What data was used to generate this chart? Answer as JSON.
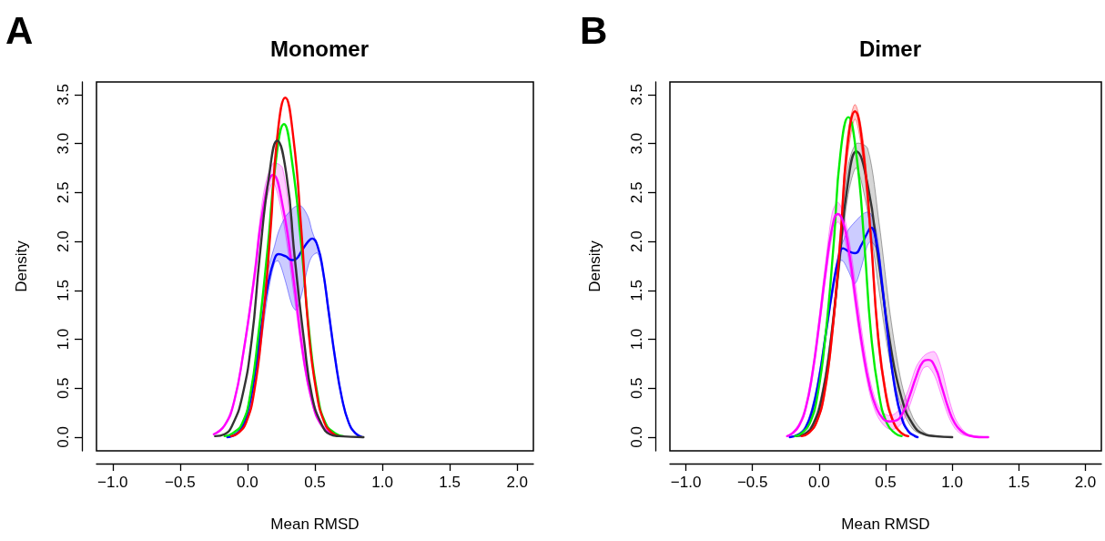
{
  "chart_data": [
    {
      "type": "line",
      "title": "Monomer",
      "xlabel": "Mean RMSD",
      "ylabel": "Density",
      "annotations": [
        "A"
      ],
      "xlim": [
        -1.12,
        2.12
      ],
      "ylim": [
        -0.14,
        3.63
      ],
      "xticks": [
        {
          "value": -1,
          "label": "−1.0"
        },
        {
          "value": -0.5,
          "label": "−0.5"
        },
        {
          "value": 0,
          "label": "0.0"
        },
        {
          "value": 0.5,
          "label": "0.5"
        },
        {
          "value": 1,
          "label": "1.0"
        },
        {
          "value": 1.5,
          "label": "1.5"
        },
        {
          "value": 2,
          "label": "2.0"
        }
      ],
      "yticks": [
        {
          "value": 0,
          "label": "0.0"
        },
        {
          "value": 0.5,
          "label": "0.5"
        },
        {
          "value": 1,
          "label": "1.0"
        },
        {
          "value": 1.5,
          "label": "1.5"
        },
        {
          "value": 2,
          "label": "2.0"
        },
        {
          "value": 2.5,
          "label": "2.5"
        },
        {
          "value": 3,
          "label": "3.0"
        },
        {
          "value": 3.5,
          "label": "3.5"
        }
      ],
      "series": [
        {
          "color": "#ff00ff",
          "x": [
            -0.25,
            -0.17,
            -0.1,
            -0.03,
            0.05,
            0.12,
            0.19,
            0.26,
            0.34,
            0.41,
            0.48,
            0.55,
            0.63
          ],
          "values": [
            0.03,
            0.12,
            0.36,
            0.87,
            1.63,
            2.37,
            2.68,
            2.37,
            1.63,
            0.87,
            0.36,
            0.12,
            0.03
          ],
          "lower": [
            0.02,
            0.11,
            0.34,
            0.83,
            1.57,
            2.3,
            2.6,
            2.25,
            1.5,
            0.8,
            0.33,
            0.1,
            0.02
          ],
          "upper": [
            0.03,
            0.13,
            0.38,
            0.9,
            1.7,
            2.5,
            2.8,
            2.75,
            1.9,
            1.0,
            0.42,
            0.14,
            0.04
          ]
        },
        {
          "color": "#0000ff",
          "x": [
            -0.15,
            -0.1,
            -0.05,
            0,
            0.05,
            0.1,
            0.15,
            0.2,
            0.23,
            0.28,
            0.33,
            0.36,
            0.4,
            0.45,
            0.48,
            0.52,
            0.56,
            0.6,
            0.65,
            0.7,
            0.75,
            0.8,
            0.85
          ],
          "values": [
            0,
            0.02,
            0.08,
            0.25,
            0.6,
            1.1,
            1.55,
            1.82,
            1.87,
            1.85,
            1.81,
            1.82,
            1.9,
            2.0,
            2.03,
            1.95,
            1.7,
            1.3,
            0.8,
            0.4,
            0.15,
            0.04,
            0
          ],
          "lower": [
            0,
            0.01,
            0.06,
            0.2,
            0.5,
            0.95,
            1.45,
            1.78,
            1.8,
            1.6,
            1.35,
            1.3,
            1.45,
            1.75,
            1.85,
            1.88,
            1.65,
            1.25,
            0.78,
            0.38,
            0.14,
            0.03,
            0
          ],
          "upper": [
            0,
            0.03,
            0.1,
            0.3,
            0.7,
            1.25,
            1.7,
            1.95,
            2.1,
            2.25,
            2.33,
            2.36,
            2.36,
            2.25,
            2.1,
            1.95,
            1.72,
            1.35,
            0.85,
            0.42,
            0.16,
            0.05,
            0
          ]
        },
        {
          "color": "#00ee00",
          "x": [
            -0.17,
            -0.11,
            -0.04,
            0.02,
            0.08,
            0.15,
            0.21,
            0.27,
            0.33,
            0.4,
            0.46,
            0.52,
            0.58,
            0.65,
            0.71
          ],
          "values": [
            0.01,
            0.04,
            0.14,
            0.43,
            1.04,
            1.94,
            2.82,
            3.2,
            2.82,
            1.94,
            1.04,
            0.43,
            0.14,
            0.04,
            0.01
          ]
        },
        {
          "color": "#ff0000",
          "x": [
            -0.12,
            -0.07,
            -0.01,
            0.05,
            0.11,
            0.17,
            0.22,
            0.28,
            0.34,
            0.4,
            0.45,
            0.51,
            0.57,
            0.63,
            0.68
          ],
          "values": [
            0.01,
            0.04,
            0.15,
            0.47,
            1.13,
            2.1,
            3.06,
            3.47,
            3.06,
            2.1,
            1.13,
            0.47,
            0.15,
            0.04,
            0.01
          ]
        },
        {
          "color": "#333333",
          "x": [
            -0.24,
            -0.17,
            -0.11,
            -0.04,
            0.03,
            0.09,
            0.16,
            0.22,
            0.29,
            0.35,
            0.42,
            0.48,
            0.55,
            0.61,
            0.68,
            0.86
          ],
          "values": [
            0.01,
            0.03,
            0.13,
            0.41,
            0.98,
            1.84,
            2.67,
            3.03,
            2.67,
            1.84,
            0.98,
            0.41,
            0.13,
            0.03,
            0.01,
            0
          ]
        }
      ]
    },
    {
      "type": "line",
      "title": "Dimer",
      "xlabel": "Mean RMSD",
      "ylabel": "Density",
      "annotations": [
        "B"
      ],
      "xlim": [
        -1.12,
        2.12
      ],
      "ylim": [
        -0.14,
        3.63
      ],
      "xticks": [
        {
          "value": -1,
          "label": "−1.0"
        },
        {
          "value": -0.5,
          "label": "−0.5"
        },
        {
          "value": 0,
          "label": "0.0"
        },
        {
          "value": 0.5,
          "label": "0.5"
        },
        {
          "value": 1,
          "label": "1.0"
        },
        {
          "value": 1.5,
          "label": "1.5"
        },
        {
          "value": 2,
          "label": "2.0"
        }
      ],
      "yticks": [
        {
          "value": 0,
          "label": "0.0"
        },
        {
          "value": 0.5,
          "label": "0.5"
        },
        {
          "value": 1,
          "label": "1.0"
        },
        {
          "value": 1.5,
          "label": "1.5"
        },
        {
          "value": 2,
          "label": "2.0"
        },
        {
          "value": 2.5,
          "label": "2.5"
        },
        {
          "value": 3,
          "label": "3.0"
        },
        {
          "value": 3.5,
          "label": "3.5"
        }
      ],
      "series": [
        {
          "color": "#333333",
          "x": [
            -0.18,
            -0.11,
            -0.045,
            0.02,
            0.085,
            0.15,
            0.215,
            0.28,
            0.365,
            0.45,
            0.535,
            0.62,
            0.705,
            0.79,
            0.875,
            1.0
          ],
          "values": [
            0.01,
            0.03,
            0.13,
            0.4,
            0.95,
            1.77,
            2.58,
            2.92,
            2.58,
            1.77,
            0.95,
            0.4,
            0.13,
            0.03,
            0.01,
            0
          ],
          "lower": [
            0.01,
            0.02,
            0.1,
            0.35,
            0.88,
            1.68,
            2.45,
            2.75,
            2.3,
            1.5,
            0.75,
            0.3,
            0.08,
            0.02,
            0,
            0
          ],
          "upper": [
            0.01,
            0.04,
            0.15,
            0.45,
            1.02,
            1.85,
            2.75,
            3.0,
            2.95,
            2.2,
            1.25,
            0.55,
            0.2,
            0.05,
            0.01,
            0
          ]
        },
        {
          "color": "#0000ff",
          "x": [
            -0.22,
            -0.15,
            -0.1,
            -0.05,
            0,
            0.05,
            0.1,
            0.15,
            0.18,
            0.22,
            0.27,
            0.32,
            0.36,
            0.39,
            0.43,
            0.47,
            0.52,
            0.57,
            0.62,
            0.67,
            0.72,
            0.74
          ],
          "values": [
            0,
            0.03,
            0.1,
            0.28,
            0.6,
            1.05,
            1.5,
            1.85,
            1.93,
            1.9,
            1.88,
            1.97,
            2.08,
            2.14,
            2.0,
            1.6,
            1.0,
            0.5,
            0.2,
            0.06,
            0.01,
            0
          ],
          "lower": [
            0,
            0.02,
            0.08,
            0.24,
            0.55,
            1.0,
            1.45,
            1.8,
            1.8,
            1.7,
            1.57,
            1.75,
            1.95,
            2.0,
            1.92,
            1.55,
            0.95,
            0.45,
            0.17,
            0.05,
            0.01,
            0
          ],
          "upper": [
            0,
            0.04,
            0.12,
            0.32,
            0.65,
            1.1,
            1.55,
            1.9,
            2.0,
            2.12,
            2.2,
            2.27,
            2.3,
            2.28,
            2.1,
            1.68,
            1.05,
            0.55,
            0.23,
            0.07,
            0.02,
            0
          ]
        },
        {
          "color": "#00ee00",
          "x": [
            -0.18,
            -0.13,
            -0.07,
            -0.01,
            0.05,
            0.11,
            0.16,
            0.22,
            0.28,
            0.34,
            0.39,
            0.45,
            0.51,
            0.57,
            0.62
          ],
          "values": [
            0.01,
            0.04,
            0.14,
            0.44,
            1.06,
            1.98,
            2.89,
            3.27,
            2.89,
            1.98,
            1.06,
            0.44,
            0.14,
            0.04,
            0.01
          ]
        },
        {
          "color": "#ff0000",
          "x": [
            -0.13,
            -0.08,
            -0.02,
            0.04,
            0.1,
            0.16,
            0.21,
            0.27,
            0.33,
            0.39,
            0.44,
            0.5,
            0.56,
            0.62,
            0.67
          ],
          "values": [
            0.01,
            0.04,
            0.15,
            0.45,
            1.08,
            2.02,
            2.94,
            3.33,
            2.94,
            2.02,
            1.08,
            0.45,
            0.15,
            0.04,
            0.01
          ],
          "lower": [
            0.01,
            0.03,
            0.13,
            0.4,
            1.0,
            1.92,
            2.82,
            3.25,
            2.84,
            1.94,
            1.0,
            0.4,
            0.13,
            0.03,
            0
          ],
          "upper": [
            0.01,
            0.05,
            0.17,
            0.5,
            1.15,
            2.12,
            3.05,
            3.4,
            3.05,
            2.1,
            1.15,
            0.5,
            0.17,
            0.05,
            0.01
          ]
        },
        {
          "color": "#ff00ff",
          "x": [
            -0.24,
            -0.2,
            -0.15,
            -0.1,
            -0.05,
            0,
            0.05,
            0.1,
            0.14,
            0.18,
            0.23,
            0.28,
            0.33,
            0.38,
            0.43,
            0.48,
            0.53,
            0.58,
            0.63,
            0.68,
            0.73,
            0.78,
            0.82,
            0.87,
            0.92,
            0.97,
            1.02,
            1.07,
            1.12,
            1.2,
            1.27
          ],
          "values": [
            0.01,
            0.04,
            0.12,
            0.3,
            0.65,
            1.15,
            1.7,
            2.15,
            2.28,
            2.2,
            1.85,
            1.35,
            0.88,
            0.52,
            0.3,
            0.19,
            0.16,
            0.17,
            0.25,
            0.42,
            0.62,
            0.77,
            0.79,
            0.72,
            0.52,
            0.3,
            0.14,
            0.06,
            0.02,
            0,
            0
          ],
          "lower": [
            0.01,
            0.03,
            0.1,
            0.27,
            0.6,
            1.08,
            1.62,
            2.07,
            2.2,
            2.1,
            1.75,
            1.25,
            0.8,
            0.45,
            0.24,
            0.13,
            0.08,
            0.09,
            0.16,
            0.32,
            0.52,
            0.7,
            0.72,
            0.62,
            0.42,
            0.22,
            0.09,
            0.03,
            0.01,
            0,
            0
          ],
          "upper": [
            0.01,
            0.05,
            0.14,
            0.33,
            0.7,
            1.22,
            1.8,
            2.3,
            2.4,
            2.3,
            1.98,
            1.5,
            1.0,
            0.6,
            0.36,
            0.25,
            0.22,
            0.25,
            0.35,
            0.52,
            0.72,
            0.82,
            0.86,
            0.87,
            0.7,
            0.42,
            0.2,
            0.09,
            0.03,
            0.01,
            0
          ]
        }
      ]
    }
  ]
}
